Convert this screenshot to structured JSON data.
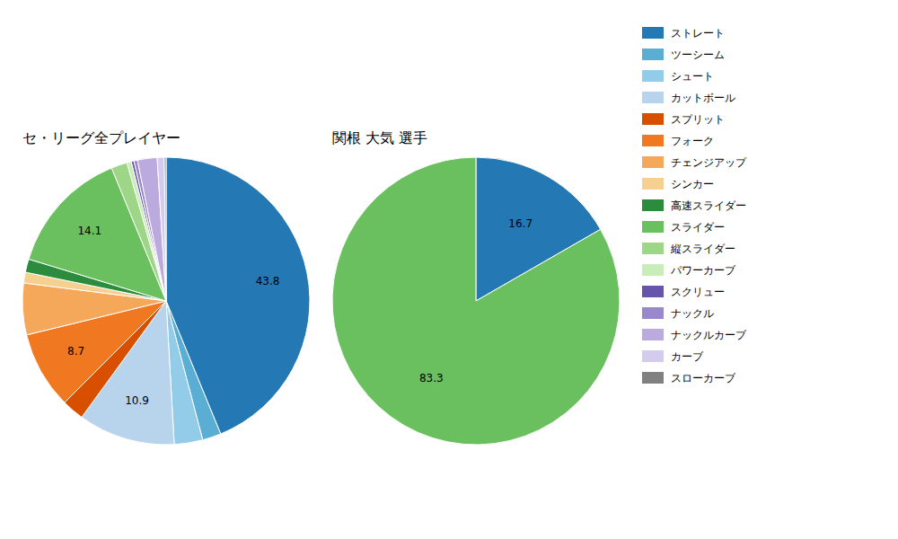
{
  "chart_data": [
    {
      "type": "pie",
      "title": "セ・リーグ全プレイヤー",
      "categories": [
        "ストレート",
        "ツーシーム",
        "シュート",
        "カットボール",
        "スプリット",
        "フォーク",
        "チェンジアップ",
        "シンカー",
        "高速スライダー",
        "スライダー",
        "縦スライダー",
        "パワーカーブ",
        "スクリュー",
        "ナックル",
        "ナックルカーブ",
        "カーブ",
        "スローカーブ"
      ],
      "values": [
        43.8,
        2.1,
        3.2,
        10.9,
        2.5,
        8.7,
        5.8,
        1.2,
        1.5,
        14.1,
        1.8,
        0.5,
        0.3,
        0.4,
        2.2,
        0.8,
        0.2
      ],
      "value_labels": [
        "43.8",
        null,
        null,
        "10.9",
        null,
        "8.7",
        null,
        null,
        null,
        "14.1",
        null,
        null,
        null,
        null,
        null,
        null,
        null
      ],
      "colors": [
        "#2478b4",
        "#5aaed4",
        "#92cce8",
        "#b8d4ec",
        "#d94f00",
        "#f07820",
        "#f5a85a",
        "#f5d090",
        "#2a8c3c",
        "#6abf5e",
        "#9ed688",
        "#c8edb8",
        "#6655aa",
        "#9988cc",
        "#bbaadd",
        "#d4ccee",
        "#808080"
      ],
      "data_labels": true,
      "legend": "right"
    },
    {
      "type": "pie",
      "title": "関根 大気  選手",
      "values": [
        16.7,
        83.3
      ],
      "colors": [
        "#2478b4",
        "#6abf5e"
      ],
      "data_labels": true
    }
  ]
}
